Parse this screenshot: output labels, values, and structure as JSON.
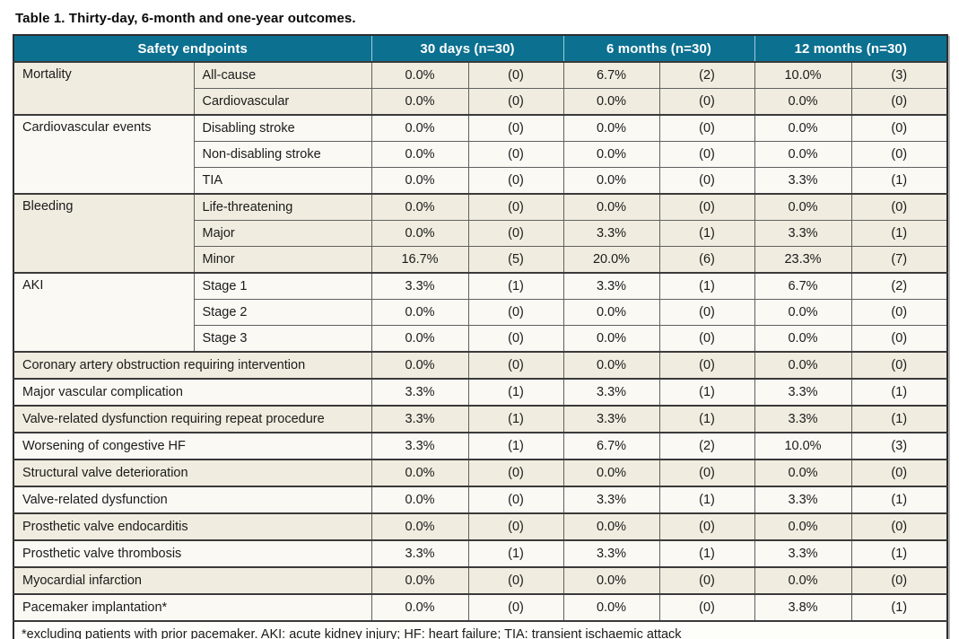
{
  "title": "Table 1. Thirty-day, 6-month and one-year outcomes.",
  "table": {
    "header": {
      "endpoints_label": "Safety endpoints",
      "timepoints": [
        "30 days (n=30)",
        "6 months (n=30)",
        "12 months (n=30)"
      ]
    },
    "rows": [
      {
        "type": "group",
        "category": "Mortality",
        "subrows": [
          {
            "label": "All-cause",
            "values": [
              "0.0%",
              "(0)",
              "6.7%",
              "(2)",
              "10.0%",
              "(3)"
            ]
          },
          {
            "label": "Cardiovascular",
            "values": [
              "0.0%",
              "(0)",
              "0.0%",
              "(0)",
              "0.0%",
              "(0)"
            ]
          }
        ]
      },
      {
        "type": "group",
        "category": "Cardiovascular events",
        "subrows": [
          {
            "label": "Disabling stroke",
            "values": [
              "0.0%",
              "(0)",
              "0.0%",
              "(0)",
              "0.0%",
              "(0)"
            ]
          },
          {
            "label": "Non-disabling stroke",
            "values": [
              "0.0%",
              "(0)",
              "0.0%",
              "(0)",
              "0.0%",
              "(0)"
            ]
          },
          {
            "label": "TIA",
            "values": [
              "0.0%",
              "(0)",
              "0.0%",
              "(0)",
              "3.3%",
              "(1)"
            ]
          }
        ]
      },
      {
        "type": "group",
        "category": "Bleeding",
        "subrows": [
          {
            "label": "Life-threatening",
            "values": [
              "0.0%",
              "(0)",
              "0.0%",
              "(0)",
              "0.0%",
              "(0)"
            ]
          },
          {
            "label": "Major",
            "values": [
              "0.0%",
              "(0)",
              "3.3%",
              "(1)",
              "3.3%",
              "(1)"
            ]
          },
          {
            "label": "Minor",
            "values": [
              "16.7%",
              "(5)",
              "20.0%",
              "(6)",
              "23.3%",
              "(7)"
            ]
          }
        ]
      },
      {
        "type": "group",
        "category": "AKI",
        "subrows": [
          {
            "label": "Stage 1",
            "values": [
              "3.3%",
              "(1)",
              "3.3%",
              "(1)",
              "6.7%",
              "(2)"
            ]
          },
          {
            "label": "Stage 2",
            "values": [
              "0.0%",
              "(0)",
              "0.0%",
              "(0)",
              "0.0%",
              "(0)"
            ]
          },
          {
            "label": "Stage 3",
            "values": [
              "0.0%",
              "(0)",
              "0.0%",
              "(0)",
              "0.0%",
              "(0)"
            ]
          }
        ]
      },
      {
        "type": "single",
        "label": "Coronary artery obstruction requiring intervention",
        "values": [
          "0.0%",
          "(0)",
          "0.0%",
          "(0)",
          "0.0%",
          "(0)"
        ]
      },
      {
        "type": "single",
        "label": "Major vascular complication",
        "values": [
          "3.3%",
          "(1)",
          "3.3%",
          "(1)",
          "3.3%",
          "(1)"
        ]
      },
      {
        "type": "single",
        "label": "Valve-related dysfunction requiring repeat procedure",
        "values": [
          "3.3%",
          "(1)",
          "3.3%",
          "(1)",
          "3.3%",
          "(1)"
        ]
      },
      {
        "type": "single",
        "label": "Worsening of congestive HF",
        "values": [
          "3.3%",
          "(1)",
          "6.7%",
          "(2)",
          "10.0%",
          "(3)"
        ]
      },
      {
        "type": "single",
        "label": "Structural valve deterioration",
        "values": [
          "0.0%",
          "(0)",
          "0.0%",
          "(0)",
          "0.0%",
          "(0)"
        ]
      },
      {
        "type": "single",
        "label": "Valve-related dysfunction",
        "values": [
          "0.0%",
          "(0)",
          "3.3%",
          "(1)",
          "3.3%",
          "(1)"
        ]
      },
      {
        "type": "single",
        "label": "Prosthetic valve endocarditis",
        "values": [
          "0.0%",
          "(0)",
          "0.0%",
          "(0)",
          "0.0%",
          "(0)"
        ]
      },
      {
        "type": "single",
        "label": "Prosthetic valve thrombosis",
        "values": [
          "3.3%",
          "(1)",
          "3.3%",
          "(1)",
          "3.3%",
          "(1)"
        ]
      },
      {
        "type": "single",
        "label": "Myocardial infarction",
        "values": [
          "0.0%",
          "(0)",
          "0.0%",
          "(0)",
          "0.0%",
          "(0)"
        ]
      },
      {
        "type": "single",
        "label": "Pacemaker implantation*",
        "values": [
          "0.0%",
          "(0)",
          "0.0%",
          "(0)",
          "3.8%",
          "(1)"
        ]
      }
    ],
    "footnote": "*excluding patients with prior pacemaker. AKI: acute kidney injury; HF: heart failure; TIA: transient ischaemic attack"
  },
  "colors": {
    "header-bg": "#0c7090",
    "header-sep": "#a5c9d6",
    "row-beige": "#f0ecdf",
    "row-white": "#fbf9f4",
    "border-dark": "#2d2d2d",
    "border-mid": "#606060",
    "border-group": "#3a3a3a",
    "text": "#1b1b1b",
    "shadow": "#b5b5b5"
  }
}
